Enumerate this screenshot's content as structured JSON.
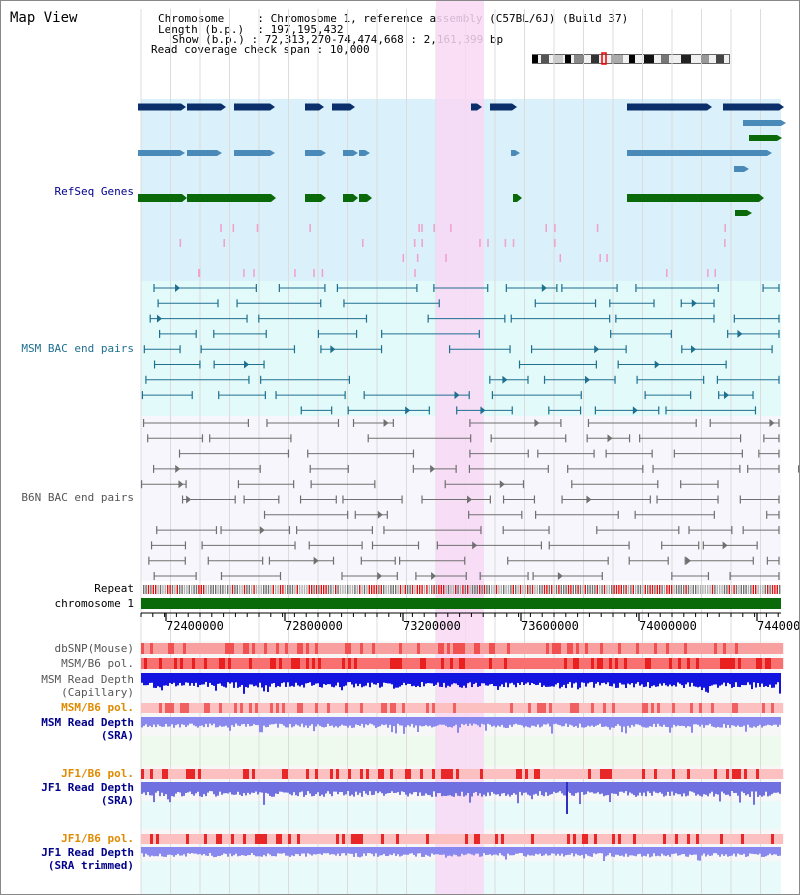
{
  "title": "Map View",
  "info": {
    "chromosome_key": "Chromosome",
    "chromosome_val": "Chromosome 1, reference assembly (C57BL/6J) (Build 37)",
    "length_key": "Length (b.p.)",
    "length_val": "197,195,432",
    "show_key": "Show (b.p.)",
    "show_val": "72,313,270-74,474,668 : 2,161,399 bp",
    "span_key": "Read coverage check span",
    "span_val": "10,000"
  },
  "tracks": {
    "refseq": "RefSeq Genes",
    "msm_bac": "MSM BAC end pairs",
    "b6n_bac": "B6N BAC end pairs",
    "repeat": "Repeat",
    "chromosome": "chromosome 1",
    "dbsnp": "dbSNP(Mouse)",
    "msm_pol": "MSM/B6 pol.",
    "msm_depth_cap_1": "MSM Read Depth",
    "msm_depth_cap_2": "(Capillary)",
    "msm_pol2": "MSM/B6 pol.",
    "msm_depth_sra_1": "MSM Read Depth",
    "msm_depth_sra_2": "(SRA)",
    "jf1_pol": "JF1/B6 pol.",
    "jf1_depth_sra_1": "JF1 Read Depth",
    "jf1_depth_sra_2": "(SRA)",
    "jf1_pol2": "JF1/B6 pol.",
    "jf1_depth_trim_1": "JF1 Read Depth",
    "jf1_depth_trim_2": "(SRA trimmed)"
  },
  "ruler": {
    "ticks": [
      "72400000",
      "72800000",
      "73200000",
      "73600000",
      "74000000",
      "744000"
    ]
  },
  "colors": {
    "refseq_bg": "#daf0fa",
    "bac_bg": "#e2fafa",
    "b6n_bg": "#f6f6fc",
    "highlight": "#f8d8f4",
    "gene_dark": "#0a2f6a",
    "gene_mid": "#4a8ab8",
    "gene_green": "#0a6a0a",
    "msm_line": "#1f6f8f",
    "b6n_line": "#707070",
    "chrom_bar": "#0a6a0a",
    "label_dark": "#00008b",
    "label_orange": "#e08a00"
  }
}
